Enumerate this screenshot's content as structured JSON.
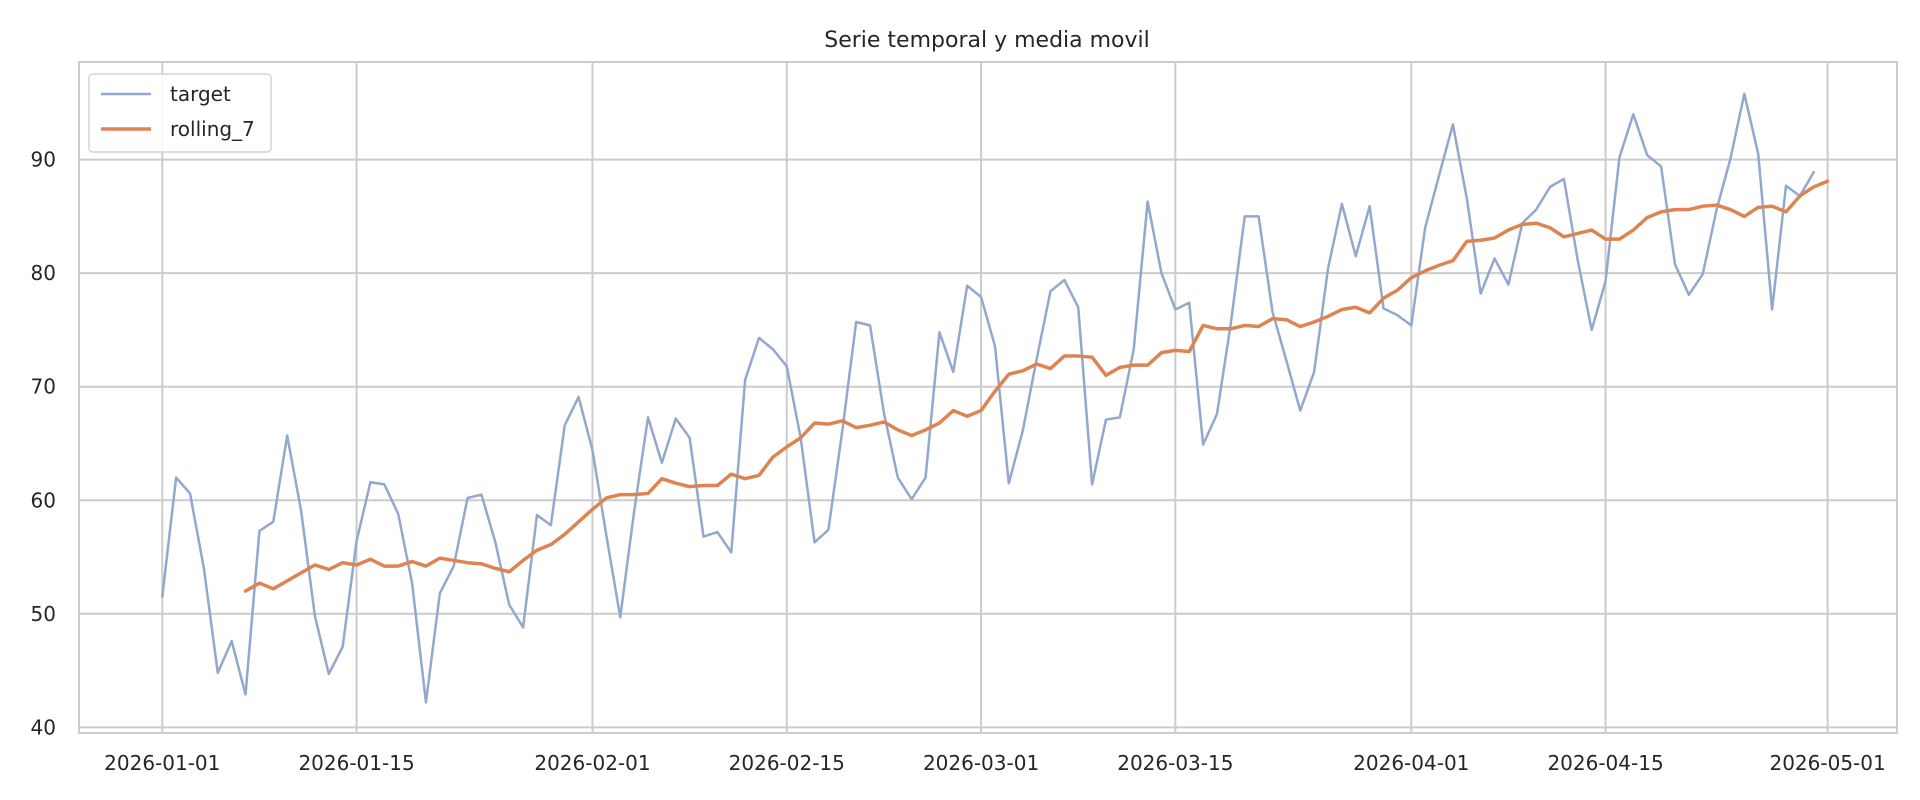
{
  "chart_data": {
    "type": "line",
    "title": "Serie temporal y media movil",
    "xlabel": "",
    "ylabel": "",
    "x_start": "2026-01-01",
    "x_frequency": "daily",
    "xlim": [
      "2025-12-26",
      "2026-05-06"
    ],
    "ylim": [
      39.5,
      98.6
    ],
    "x_ticks": [
      "2026-01-01",
      "2026-01-15",
      "2026-02-01",
      "2026-02-15",
      "2026-03-01",
      "2026-03-15",
      "2026-04-01",
      "2026-04-15",
      "2026-05-01"
    ],
    "y_ticks": [
      40,
      50,
      60,
      70,
      80,
      90
    ],
    "grid": true,
    "legend_position": "top-left",
    "series": [
      {
        "name": "target",
        "color": "#92a8ce",
        "values": [
          51.5,
          62.0,
          60.6,
          54.0,
          44.8,
          47.6,
          42.9,
          57.3,
          58.1,
          65.7,
          59.1,
          49.8,
          44.7,
          47.1,
          56.4,
          61.6,
          61.4,
          58.8,
          52.7,
          42.2,
          51.8,
          54.2,
          60.2,
          60.5,
          56.3,
          50.8,
          48.8,
          58.7,
          57.8,
          66.6,
          69.1,
          64.4,
          56.9,
          49.7,
          59.0,
          67.3,
          63.3,
          67.2,
          65.5,
          56.8,
          57.2,
          55.4,
          70.6,
          74.3,
          73.3,
          71.8,
          65.5,
          56.3,
          57.4,
          66.1,
          75.7,
          75.4,
          67.7,
          62.0,
          60.1,
          62.0,
          74.8,
          71.3,
          78.9,
          77.9,
          73.6,
          61.5,
          66.1,
          72.4,
          78.4,
          79.4,
          77.0,
          61.4,
          67.1,
          67.3,
          73.3,
          86.3,
          80.0,
          76.8,
          77.4,
          64.9,
          67.6,
          75.6,
          85.0,
          85.0,
          76.6,
          72.3,
          67.9,
          71.3,
          80.4,
          86.1,
          81.5,
          85.9,
          76.9,
          76.3,
          75.4,
          84.0,
          88.6,
          93.1,
          86.6,
          78.2,
          81.3,
          79.0,
          84.4,
          85.6,
          87.6,
          88.3,
          81.1,
          75.0,
          79.3,
          90.2,
          94.0,
          90.4,
          89.4,
          80.8,
          78.1,
          79.9,
          85.6,
          90.1,
          95.8,
          90.5,
          76.8,
          87.7,
          86.8,
          88.9
        ]
      },
      {
        "name": "rolling_7",
        "color": "#dd8452",
        "start_index": 6,
        "values": [
          52.0,
          52.7,
          52.2,
          52.9,
          53.6,
          54.3,
          53.9,
          54.5,
          54.3,
          54.8,
          54.2,
          54.2,
          54.6,
          54.2,
          54.9,
          54.7,
          54.5,
          54.4,
          54.0,
          53.7,
          54.7,
          55.6,
          56.1,
          57.0,
          58.1,
          59.2,
          60.2,
          60.5,
          60.5,
          60.6,
          61.9,
          61.5,
          61.2,
          61.3,
          61.3,
          62.3,
          61.9,
          62.2,
          63.8,
          64.7,
          65.5,
          66.8,
          66.7,
          67.0,
          66.4,
          66.6,
          66.9,
          66.2,
          65.7,
          66.2,
          66.8,
          67.9,
          67.4,
          67.9,
          69.6,
          71.1,
          71.4,
          72.0,
          71.6,
          72.7,
          72.7,
          72.6,
          71.0,
          71.7,
          71.9,
          71.9,
          73.0,
          73.2,
          73.1,
          75.4,
          75.1,
          75.1,
          75.4,
          75.3,
          76.0,
          75.9,
          75.3,
          75.7,
          76.2,
          76.8,
          77.0,
          76.5,
          77.8,
          78.5,
          79.6,
          80.2,
          80.7,
          81.1,
          82.8,
          82.9,
          83.1,
          83.8,
          84.3,
          84.4,
          84.0,
          83.2,
          83.5,
          83.8,
          83.0,
          83.0,
          83.8,
          84.9,
          85.4,
          85.6,
          85.6,
          85.9,
          86.0,
          85.6,
          85.0,
          85.8,
          85.9,
          85.4,
          86.8,
          87.6,
          88.1
        ]
      }
    ]
  }
}
